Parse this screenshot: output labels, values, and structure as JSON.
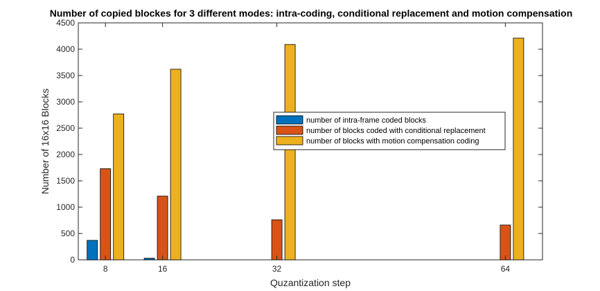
{
  "chart_data": {
    "type": "bar",
    "title": "Number of copied blockes for 3 different modes: intra-coding, conditional replacement and motion compensation",
    "xlabel": "Quzantization step",
    "ylabel": "Number of 16x16 Blocks",
    "x": [
      8,
      16,
      32,
      64
    ],
    "xlim": [
      4.2,
      69.2
    ],
    "ylim": [
      0,
      4500
    ],
    "yticks": [
      0,
      500,
      1000,
      1500,
      2000,
      2500,
      3000,
      3500,
      4000,
      4500
    ],
    "grid": false,
    "legend_position": "center-right",
    "series": [
      {
        "name": "number of intra-frame coded blocks",
        "color": "#0072BD",
        "values": [
          370,
          30,
          0,
          0
        ]
      },
      {
        "name": "number of blocks coded with conditional replacement",
        "color": "#D95319",
        "values": [
          1730,
          1210,
          760,
          660
        ]
      },
      {
        "name": "number of blocks with motion compensation coding",
        "color": "#EDB120",
        "values": [
          2770,
          3620,
          4090,
          4210
        ]
      }
    ]
  }
}
